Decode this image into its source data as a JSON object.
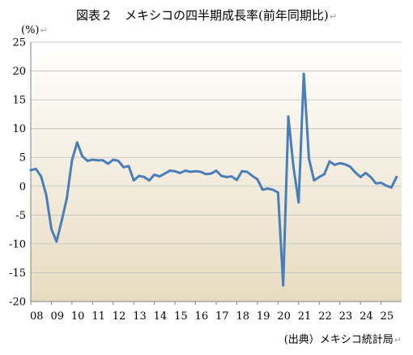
{
  "title": "図表２　メキシコの四半期成長率(前年同期比)",
  "unit": "(%)",
  "source": "(出典）メキシコ統計局",
  "return_mark": "↵",
  "colors": {
    "line": "#4a7ebb",
    "bg_top": "#ffffff",
    "bg_bottom": "#e8dcc0",
    "grid": "#bfbfbf"
  },
  "chart_data": {
    "type": "line",
    "title": "図表２　メキシコの四半期成長率(前年同期比)",
    "xlabel": "",
    "ylabel": "(%)",
    "ylim": [
      -20,
      25
    ],
    "yticks": [
      25,
      20,
      15,
      10,
      5,
      0,
      -5,
      -10,
      -15,
      -20
    ],
    "xtick_labels": [
      "08",
      "09",
      "10",
      "11",
      "12",
      "13",
      "14",
      "15",
      "16",
      "17",
      "18",
      "19",
      "20",
      "21",
      "22",
      "23",
      "24",
      "25"
    ],
    "x_start": 2008.0,
    "x_step": 0.25,
    "grid": true,
    "series": [
      {
        "values": [
          2.8,
          3.0,
          1.7,
          -1.5,
          -7.4,
          -9.6,
          -6.0,
          -2.1,
          4.5,
          7.6,
          5.2,
          4.4,
          4.6,
          4.5,
          4.5,
          3.9,
          4.6,
          4.4,
          3.3,
          3.5,
          1.0,
          1.8,
          1.6,
          1.0,
          2.0,
          1.7,
          2.2,
          2.7,
          2.6,
          2.3,
          2.7,
          2.5,
          2.6,
          2.5,
          2.1,
          2.2,
          2.7,
          1.8,
          1.6,
          1.7,
          1.1,
          2.6,
          2.5,
          1.8,
          1.2,
          -0.6,
          -0.4,
          -0.6,
          -1.1,
          -17.2,
          12.1,
          3.3,
          -2.8,
          19.5,
          4.8,
          1.0,
          1.6,
          2.1,
          4.3,
          3.7,
          4.0,
          3.8,
          3.4,
          2.4,
          1.6,
          2.3,
          1.6,
          0.5,
          0.6,
          0.1,
          -0.2,
          1.6
        ]
      }
    ]
  }
}
